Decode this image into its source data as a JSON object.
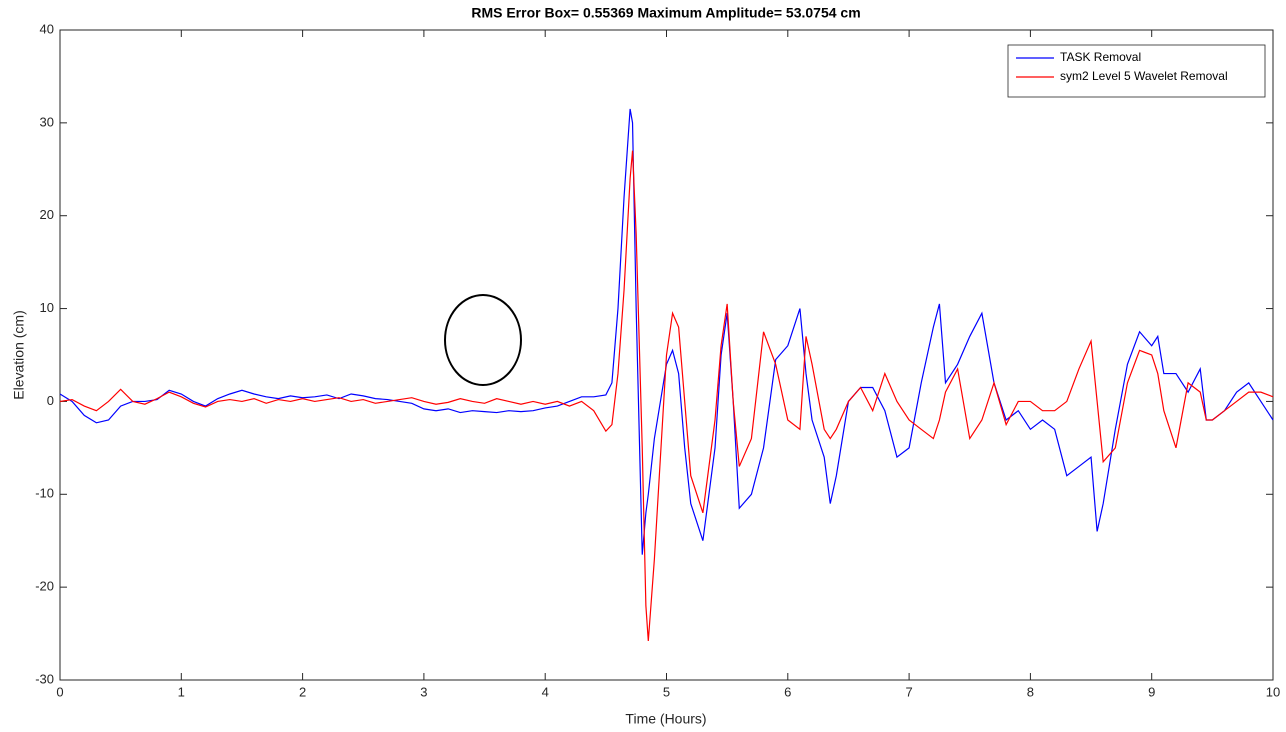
{
  "chart_data": {
    "type": "line",
    "title": "RMS Error Box= 0.55369   Maximum Amplitude= 53.0754 cm",
    "xlabel": "Time (Hours)",
    "ylabel": "Elevation (cm)",
    "xlim": [
      0,
      10
    ],
    "ylim": [
      -30,
      40
    ],
    "xticks": [
      0,
      1,
      2,
      3,
      4,
      5,
      6,
      7,
      8,
      9,
      10
    ],
    "yticks": [
      -30,
      -20,
      -10,
      0,
      10,
      20,
      30,
      40
    ],
    "grid": false,
    "legend": "northeast",
    "x": [
      0,
      0.1,
      0.2,
      0.3,
      0.4,
      0.5,
      0.6,
      0.7,
      0.8,
      0.9,
      1,
      1.1,
      1.2,
      1.3,
      1.4,
      1.5,
      1.6,
      1.7,
      1.8,
      1.9,
      2,
      2.1,
      2.2,
      2.3,
      2.4,
      2.5,
      2.6,
      2.7,
      2.8,
      2.9,
      3,
      3.1,
      3.2,
      3.3,
      3.4,
      3.5,
      3.6,
      3.7,
      3.8,
      3.9,
      4,
      4.1,
      4.2,
      4.3,
      4.4,
      4.5,
      4.55,
      4.6,
      4.65,
      4.7,
      4.72,
      4.75,
      4.8,
      4.83,
      4.85,
      4.9,
      4.95,
      5,
      5.05,
      5.1,
      5.15,
      5.2,
      5.3,
      5.4,
      5.45,
      5.5,
      5.55,
      5.6,
      5.7,
      5.8,
      5.9,
      6,
      6.1,
      6.15,
      6.2,
      6.3,
      6.35,
      6.4,
      6.5,
      6.6,
      6.7,
      6.8,
      6.9,
      7,
      7.1,
      7.2,
      7.25,
      7.3,
      7.4,
      7.5,
      7.6,
      7.7,
      7.8,
      7.9,
      8,
      8.1,
      8.2,
      8.3,
      8.4,
      8.5,
      8.55,
      8.6,
      8.7,
      8.8,
      8.9,
      9,
      9.05,
      9.1,
      9.2,
      9.3,
      9.4,
      9.45,
      9.5,
      9.6,
      9.7,
      9.8,
      9.9,
      10
    ],
    "series": [
      {
        "name": "TASK Removal",
        "color": "#0000ff",
        "values": [
          0.8,
          0,
          -1.5,
          -2.3,
          -2,
          -0.5,
          0,
          0,
          0.2,
          1.2,
          0.8,
          0,
          -0.5,
          0.3,
          0.8,
          1.2,
          0.8,
          0.5,
          0.3,
          0.6,
          0.4,
          0.5,
          0.7,
          0.3,
          0.8,
          0.6,
          0.3,
          0.2,
          0,
          -0.2,
          -0.8,
          -1,
          -0.8,
          -1.2,
          -1,
          -1.1,
          -1.2,
          -1,
          -1.1,
          -1,
          -0.7,
          -0.5,
          0,
          0.5,
          0.5,
          0.7,
          2,
          10,
          22,
          31.5,
          30,
          10,
          -16.5,
          -12,
          -10,
          -4,
          0,
          4,
          5.5,
          3,
          -5,
          -11,
          -15,
          -5,
          5,
          9.5,
          0,
          -11.5,
          -10,
          -5,
          4.5,
          6,
          10,
          3,
          -2,
          -6,
          -11,
          -8,
          0,
          1.5,
          1.5,
          -1,
          -6,
          -5,
          2,
          8,
          10.5,
          2,
          4,
          7,
          9.5,
          2,
          -2,
          -1,
          -3,
          -2,
          -3,
          -8,
          -7,
          -6,
          -14,
          -11,
          -3,
          4,
          7.5,
          6,
          7,
          3,
          3,
          1,
          3.5,
          -2,
          -2,
          -1,
          1,
          2,
          0,
          -2
        ]
      },
      {
        "name": "sym2 Level 5  Wavelet Removal",
        "color": "#ff0000",
        "values": [
          0,
          0.2,
          -0.5,
          -1,
          0,
          1.3,
          0,
          -0.3,
          0.3,
          1,
          0.5,
          -0.2,
          -0.6,
          0,
          0.2,
          0,
          0.3,
          -0.2,
          0.2,
          0,
          0.3,
          0,
          0.2,
          0.4,
          0,
          0.2,
          -0.2,
          0,
          0.2,
          0.4,
          0,
          -0.3,
          -0.1,
          0.3,
          0,
          -0.2,
          0.3,
          0,
          -0.3,
          0,
          -0.3,
          0,
          -0.5,
          0,
          -1,
          -3.2,
          -2.5,
          3,
          12,
          24,
          27,
          18,
          -5,
          -22,
          -25.8,
          -17,
          -6,
          5,
          9.5,
          8,
          0,
          -8,
          -12,
          -2,
          6,
          10.5,
          0,
          -7,
          -4,
          7.5,
          4,
          -2,
          -3,
          7,
          4,
          -3,
          -4,
          -3,
          0,
          1.5,
          -1,
          3,
          0,
          -2,
          -3,
          -4,
          -2,
          1,
          3.5,
          -4,
          -2,
          2,
          -2.5,
          0,
          0,
          -1,
          -1,
          0,
          3.5,
          6.5,
          0,
          -6.5,
          -5,
          2,
          5.5,
          5,
          3,
          -1,
          -5,
          2,
          1,
          -2,
          -2,
          -1,
          0,
          1,
          1,
          0.5
        ]
      }
    ]
  }
}
